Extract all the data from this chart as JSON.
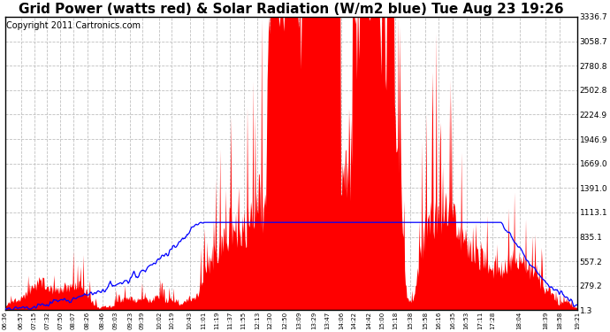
{
  "title": "Grid Power (watts red) & Solar Radiation (W/m2 blue) Tue Aug 23 19:26",
  "copyright": "Copyright 2011 Cartronics.com",
  "yticks": [
    1.3,
    279.2,
    557.2,
    835.1,
    1113.1,
    1391.0,
    1669.0,
    1946.9,
    2224.9,
    2502.8,
    2780.8,
    3058.7,
    3336.7
  ],
  "ymin": 1.3,
  "ymax": 3336.7,
  "xtick_labels": [
    "06:36",
    "06:57",
    "07:15",
    "07:32",
    "07:50",
    "08:07",
    "08:26",
    "08:46",
    "09:03",
    "09:23",
    "09:39",
    "10:02",
    "10:19",
    "10:43",
    "11:01",
    "11:19",
    "11:37",
    "11:55",
    "12:13",
    "12:30",
    "12:50",
    "13:09",
    "13:29",
    "13:47",
    "14:06",
    "14:22",
    "14:42",
    "15:00",
    "15:18",
    "15:38",
    "15:58",
    "16:16",
    "16:35",
    "16:53",
    "17:11",
    "17:28",
    "18:04",
    "18:39",
    "18:58",
    "19:21"
  ],
  "bg_color": "#ffffff",
  "grid_color": "#aaaaaa",
  "red_color": "#ff0000",
  "blue_color": "#0000ff",
  "title_fontsize": 11,
  "copyright_fontsize": 7
}
